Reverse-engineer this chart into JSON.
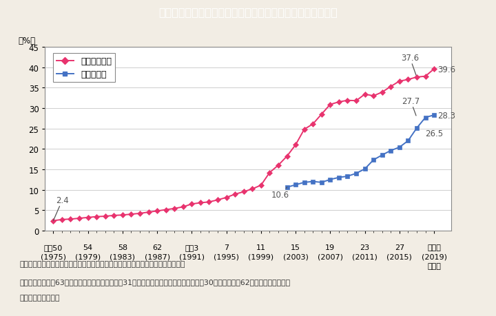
{
  "title": "Ｉ－１－５図　国の審議会等における女性委員の割合の推移",
  "title_bg_color": "#29b8cc",
  "title_text_color": "white",
  "ylabel": "（%）",
  "xlabel_bottom": "（年）",
  "ylim": [
    0,
    45
  ],
  "yticks": [
    0,
    5,
    10,
    15,
    20,
    25,
    30,
    35,
    40,
    45
  ],
  "background_color": "#f2ede4",
  "plot_bg_color": "#ffffff",
  "series1_label": "審議会等委員",
  "series1_color": "#e8336e",
  "series2_label": "専門委員等",
  "series2_color": "#4472c4",
  "series1_x": [
    1975,
    1976,
    1977,
    1978,
    1979,
    1980,
    1981,
    1982,
    1983,
    1984,
    1985,
    1986,
    1987,
    1988,
    1989,
    1990,
    1991,
    1992,
    1993,
    1994,
    1995,
    1996,
    1997,
    1998,
    1999,
    2000,
    2001,
    2002,
    2003,
    2004,
    2005,
    2006,
    2007,
    2008,
    2009,
    2010,
    2011,
    2012,
    2013,
    2014,
    2015,
    2016,
    2017,
    2018,
    2019
  ],
  "series1_y": [
    2.4,
    2.7,
    2.8,
    3.0,
    3.2,
    3.4,
    3.5,
    3.7,
    3.8,
    4.0,
    4.2,
    4.5,
    4.8,
    5.1,
    5.4,
    5.8,
    6.5,
    6.8,
    7.0,
    7.5,
    8.1,
    8.9,
    9.5,
    10.2,
    11.1,
    14.2,
    16.0,
    18.2,
    21.0,
    24.8,
    26.1,
    28.5,
    30.9,
    31.5,
    31.9,
    31.8,
    33.4,
    33.0,
    33.9,
    35.3,
    36.6,
    37.0,
    37.6,
    37.8,
    39.6
  ],
  "series2_x": [
    2002,
    2003,
    2004,
    2005,
    2006,
    2007,
    2008,
    2009,
    2010,
    2011,
    2012,
    2013,
    2014,
    2015,
    2016,
    2017,
    2018,
    2019
  ],
  "series2_y": [
    10.6,
    11.2,
    11.8,
    12.0,
    11.8,
    12.5,
    13.0,
    13.3,
    14.0,
    15.1,
    17.3,
    18.5,
    19.6,
    20.4,
    22.0,
    25.1,
    27.7,
    28.3
  ],
  "note_line1": "（備考）１．内閣府「国の審議会等における女性委員の参画状況調べ」より作成。",
  "note_line2": "　　　　２．昭和63年から平成６年は，各年３月31日現在。平成７年以降は，各年９月30日現在。昭和62年以前は，年により",
  "note_line3": "　　　　　異なる。",
  "xtick_labels_top": [
    "昭和50",
    "54",
    "58",
    "62",
    "平成3",
    "7",
    "11",
    "15",
    "19",
    "23",
    "27",
    "令和元"
  ],
  "xtick_labels_bot": [
    "(1975)",
    "(1979)",
    "(1983)",
    "(1987)",
    "(1991)",
    "(1995)",
    "(1999)",
    "(2003)",
    "(2007)",
    "(2011)",
    "(2015)",
    "(2019)"
  ],
  "xtick_positions": [
    1975,
    1979,
    1983,
    1987,
    1991,
    1995,
    1999,
    2003,
    2007,
    2011,
    2015,
    2019
  ]
}
